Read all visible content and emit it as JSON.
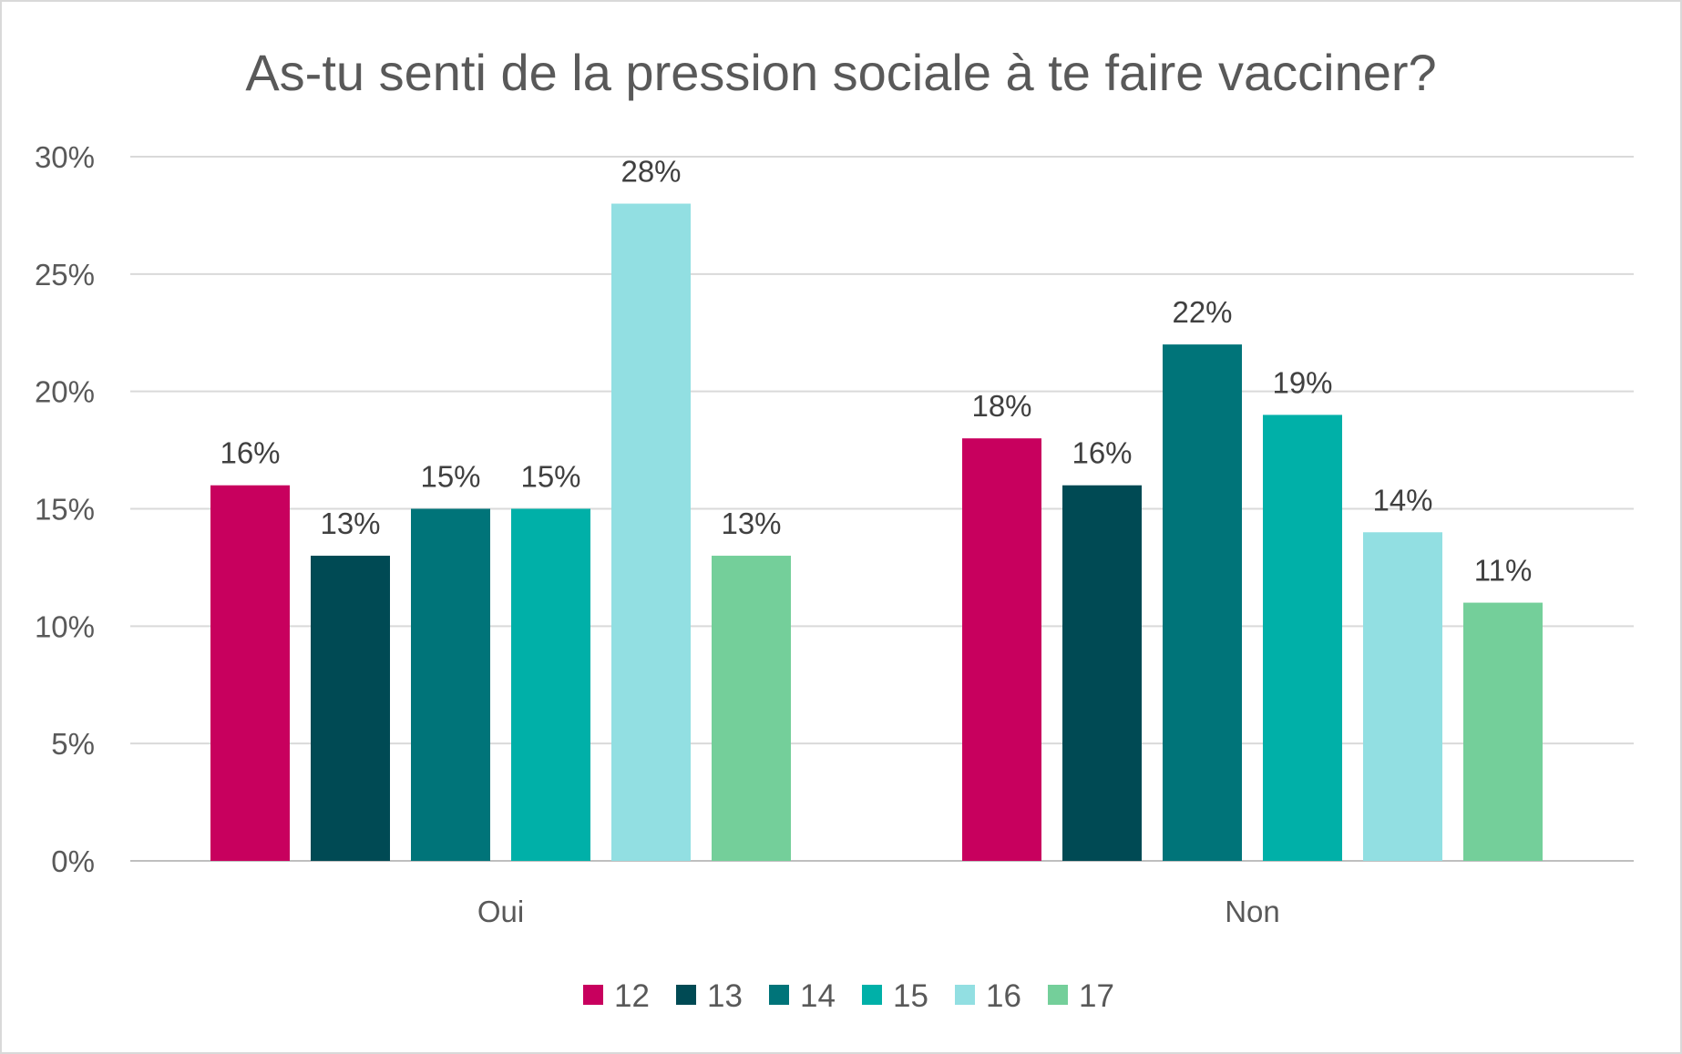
{
  "chart_data": {
    "type": "bar",
    "title": "As-tu senti de la pression sociale à te faire vacciner?",
    "xlabel": "",
    "ylabel": "",
    "categories": [
      "Oui",
      "Non"
    ],
    "ylim": [
      0,
      30
    ],
    "yticks": [
      0,
      5,
      10,
      15,
      20,
      25,
      30
    ],
    "ytick_labels": [
      "0%",
      "5%",
      "10%",
      "15%",
      "20%",
      "25%",
      "30%"
    ],
    "grid": true,
    "legend_position": "bottom",
    "series": [
      {
        "name": "12",
        "color": "#c8005e",
        "values": [
          16,
          18
        ],
        "labels": [
          "16%",
          "18%"
        ]
      },
      {
        "name": "13",
        "color": "#004a54",
        "values": [
          13,
          16
        ],
        "labels": [
          "13%",
          "16%"
        ]
      },
      {
        "name": "14",
        "color": "#007479",
        "values": [
          15,
          22
        ],
        "labels": [
          "15%",
          "22%"
        ]
      },
      {
        "name": "15",
        "color": "#00b0a8",
        "values": [
          15,
          19
        ],
        "labels": [
          "15%",
          "19%"
        ]
      },
      {
        "name": "16",
        "color": "#92dfe2",
        "values": [
          28,
          14
        ],
        "labels": [
          "28%",
          "14%"
        ]
      },
      {
        "name": "17",
        "color": "#74cf9a",
        "values": [
          13,
          11
        ],
        "labels": [
          "13%",
          "11%"
        ]
      }
    ],
    "colors": {
      "gridline": "#d9d9d9",
      "axis": "#bfbfbf"
    }
  }
}
